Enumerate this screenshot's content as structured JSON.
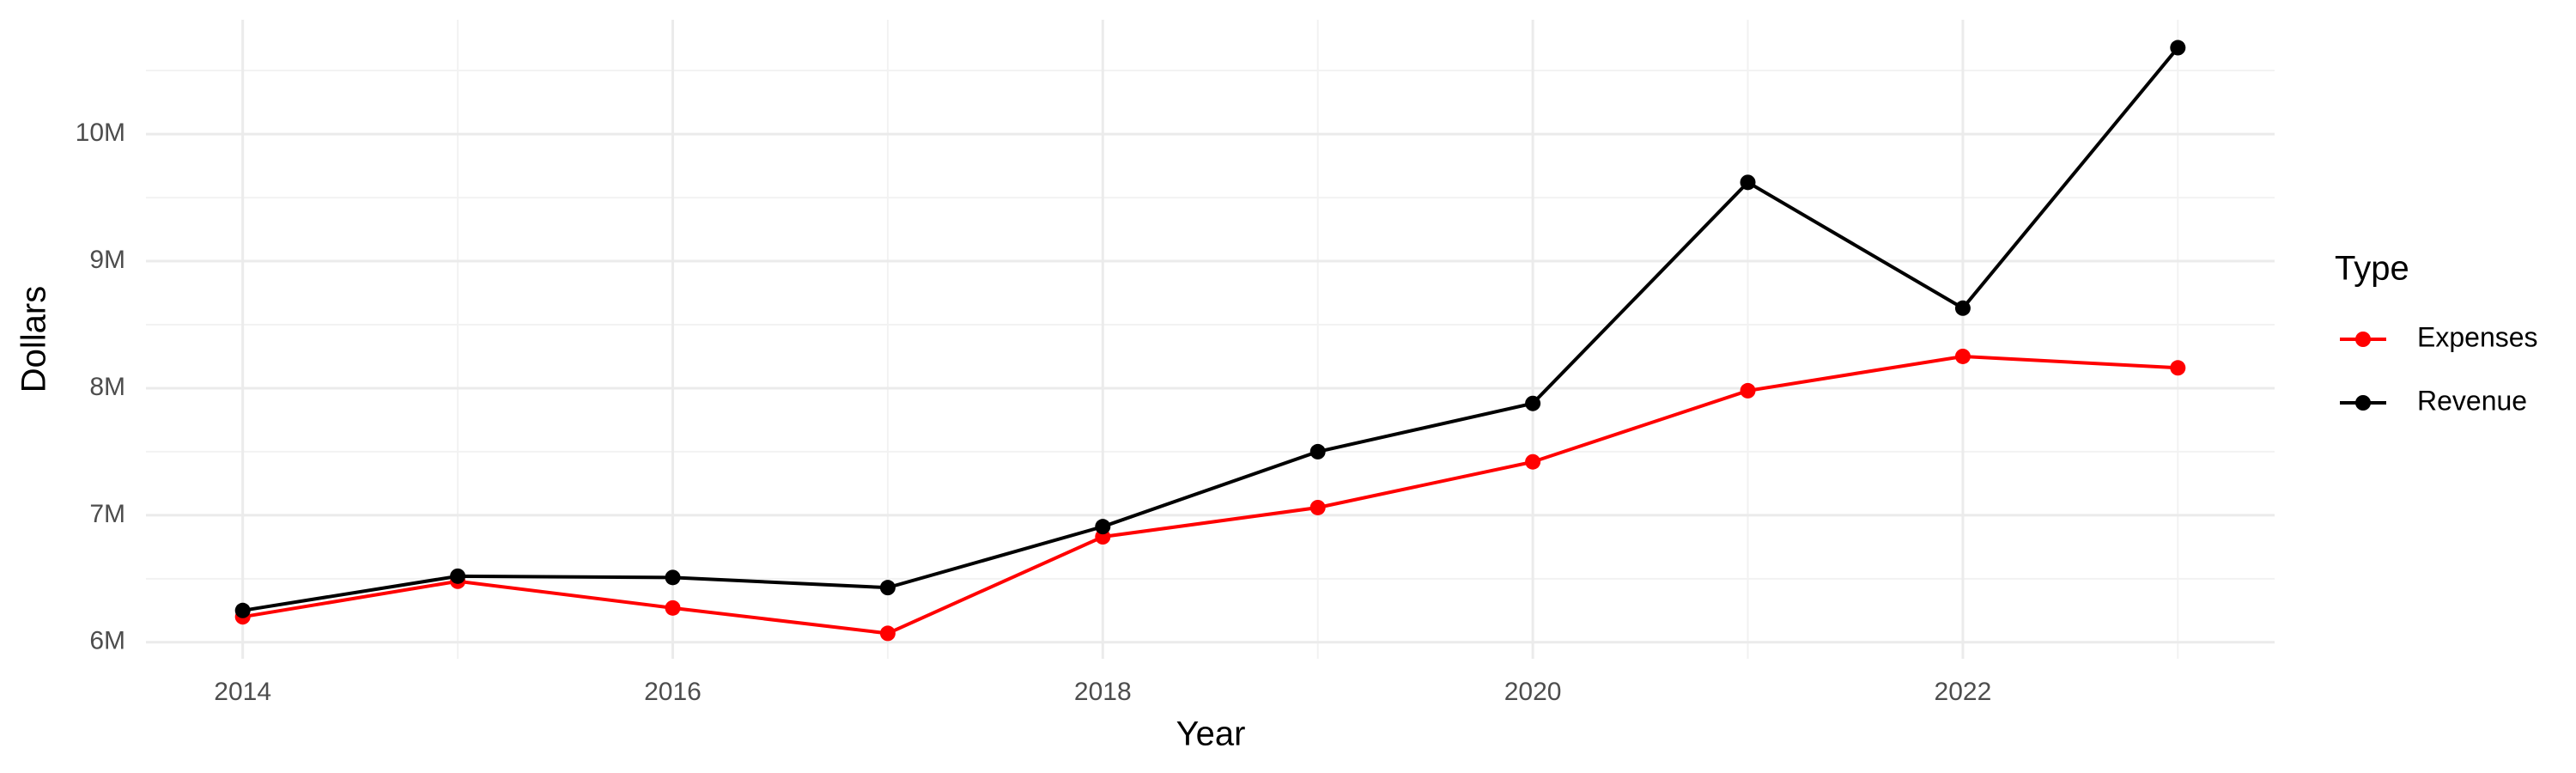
{
  "chart_data": {
    "type": "line",
    "x_label": "Year",
    "y_label": "Dollars",
    "legend_title": "Type",
    "legend_position": "right",
    "grid": true,
    "x": [
      2014,
      2015,
      2016,
      2017,
      2018,
      2019,
      2020,
      2021,
      2022,
      2023
    ],
    "series": [
      {
        "name": "Expenses",
        "color": "#ff0000",
        "values": [
          6200000,
          6480000,
          6270000,
          6070000,
          6830000,
          7060000,
          7420000,
          7980000,
          8250000,
          8160000
        ]
      },
      {
        "name": "Revenue",
        "color": "#000000",
        "values": [
          6250000,
          6520000,
          6510000,
          6430000,
          6910000,
          7500000,
          7880000,
          9620000,
          8630000,
          10680000
        ]
      }
    ],
    "xlim": [
      2013.55,
      2023.45
    ],
    "ylim": [
      5870000,
      10900000
    ],
    "xticks": [
      2014,
      2016,
      2018,
      2020,
      2022
    ],
    "yticks": [
      {
        "value": 6000000,
        "label": "6M"
      },
      {
        "value": 7000000,
        "label": "7M"
      },
      {
        "value": 8000000,
        "label": "8M"
      },
      {
        "value": 9000000,
        "label": "9M"
      },
      {
        "value": 10000000,
        "label": "10M"
      }
    ]
  }
}
